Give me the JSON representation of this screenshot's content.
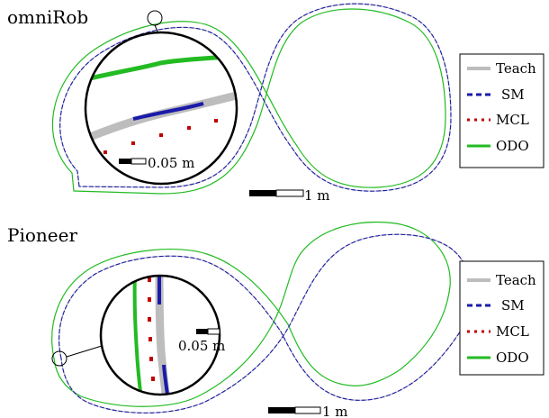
{
  "panels": [
    {
      "title": "omniRob",
      "scalebar_label": "1 m",
      "inset_scale_label": "0.05 m"
    },
    {
      "title": "Pioneer",
      "scalebar_label": "1 m",
      "inset_scale_label": "0.05 m"
    }
  ],
  "legend": {
    "items": [
      {
        "label": "Teach",
        "color": "#bdbdbd",
        "style": "solid"
      },
      {
        "label": "SM",
        "color": "#1a1aaa",
        "style": "dashed"
      },
      {
        "label": "MCL",
        "color": "#c00000",
        "style": "dotted"
      },
      {
        "label": "ODO",
        "color": "#22bb22",
        "style": "solid"
      }
    ]
  }
}
